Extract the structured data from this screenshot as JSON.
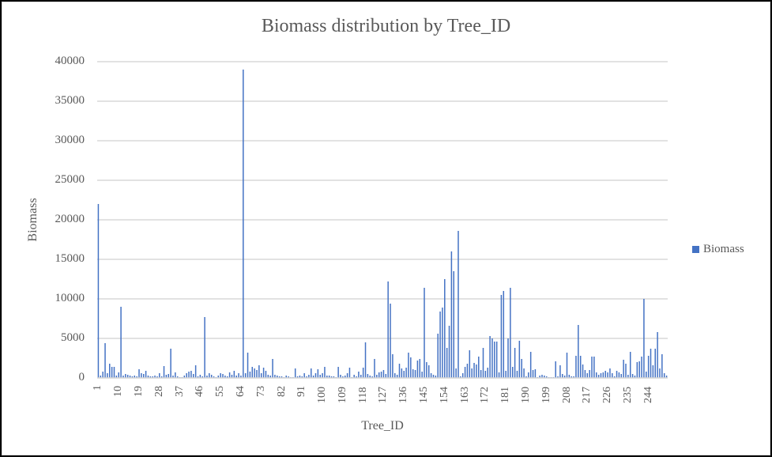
{
  "chart_data": {
    "type": "bar",
    "title": "Biomass distribution by Tree_ID",
    "xlabel": "Tree_ID",
    "ylabel": "Biomass",
    "ylim": [
      0,
      40000
    ],
    "yticks": [
      0,
      5000,
      10000,
      15000,
      20000,
      25000,
      30000,
      35000,
      40000
    ],
    "xtick_labels": [
      "1",
      "10",
      "19",
      "28",
      "37",
      "46",
      "55",
      "64",
      "73",
      "82",
      "91",
      "100",
      "109",
      "118",
      "127",
      "136",
      "145",
      "154",
      "163",
      "172",
      "181",
      "190",
      "199",
      "208",
      "217",
      "226",
      "235",
      "244"
    ],
    "grid": true,
    "legend_position": "right",
    "legend": [
      "Biomass"
    ],
    "series": [
      {
        "name": "Biomass",
        "color": "#4472c4",
        "x_start": 1,
        "x_end": 250,
        "values": [
          22000,
          300,
          800,
          4400,
          600,
          1800,
          1400,
          1400,
          300,
          700,
          9000,
          300,
          500,
          400,
          300,
          200,
          300,
          200,
          1100,
          600,
          500,
          900,
          300,
          200,
          200,
          300,
          200,
          600,
          200,
          1500,
          400,
          500,
          3700,
          300,
          700,
          200,
          100,
          100,
          300,
          600,
          800,
          900,
          500,
          1600,
          200,
          400,
          200,
          7700,
          300,
          600,
          400,
          200,
          100,
          300,
          600,
          500,
          300,
          200,
          700,
          400,
          900,
          300,
          600,
          300,
          39000,
          600,
          3200,
          800,
          1400,
          1200,
          1000,
          1600,
          600,
          1300,
          900,
          400,
          300,
          2400,
          400,
          300,
          200,
          200,
          100,
          300,
          200,
          100,
          100,
          1200,
          200,
          300,
          200,
          600,
          200,
          400,
          1200,
          300,
          600,
          1100,
          400,
          600,
          1400,
          300,
          300,
          200,
          200,
          100,
          1400,
          400,
          200,
          300,
          600,
          1300,
          100,
          400,
          200,
          800,
          400,
          1300,
          4500,
          500,
          300,
          200,
          2400,
          400,
          700,
          800,
          1000,
          500,
          12200,
          9400,
          3000,
          600,
          400,
          1800,
          1200,
          900,
          1300,
          3200,
          2600,
          1100,
          1000,
          2200,
          2400,
          800,
          11400,
          2000,
          1600,
          600,
          400,
          300,
          5600,
          8400,
          8900,
          12500,
          3800,
          6600,
          16000,
          13500,
          1200,
          18600,
          200,
          600,
          1400,
          1800,
          3500,
          1200,
          1900,
          1700,
          2700,
          1000,
          3800,
          900,
          1300,
          5300,
          5000,
          4600,
          4600,
          700,
          10500,
          11000,
          900,
          5000,
          11400,
          1400,
          3800,
          900,
          4700,
          2400,
          1200,
          200,
          700,
          3300,
          1000,
          1100,
          100,
          300,
          400,
          300,
          200,
          100,
          100,
          100,
          2100,
          200,
          1600,
          500,
          300,
          3200,
          400,
          200,
          200,
          2800,
          6700,
          2800,
          1700,
          1000,
          600,
          1000,
          2700,
          2700,
          700,
          400,
          600,
          700,
          900,
          700,
          1200,
          600,
          200,
          900,
          700,
          500,
          2300,
          1800,
          400,
          3300,
          500,
          300,
          2000,
          2100,
          2700,
          10000,
          800,
          2800,
          3700,
          1600,
          3700,
          5800,
          1200,
          3000,
          600,
          300
        ]
      }
    ]
  }
}
